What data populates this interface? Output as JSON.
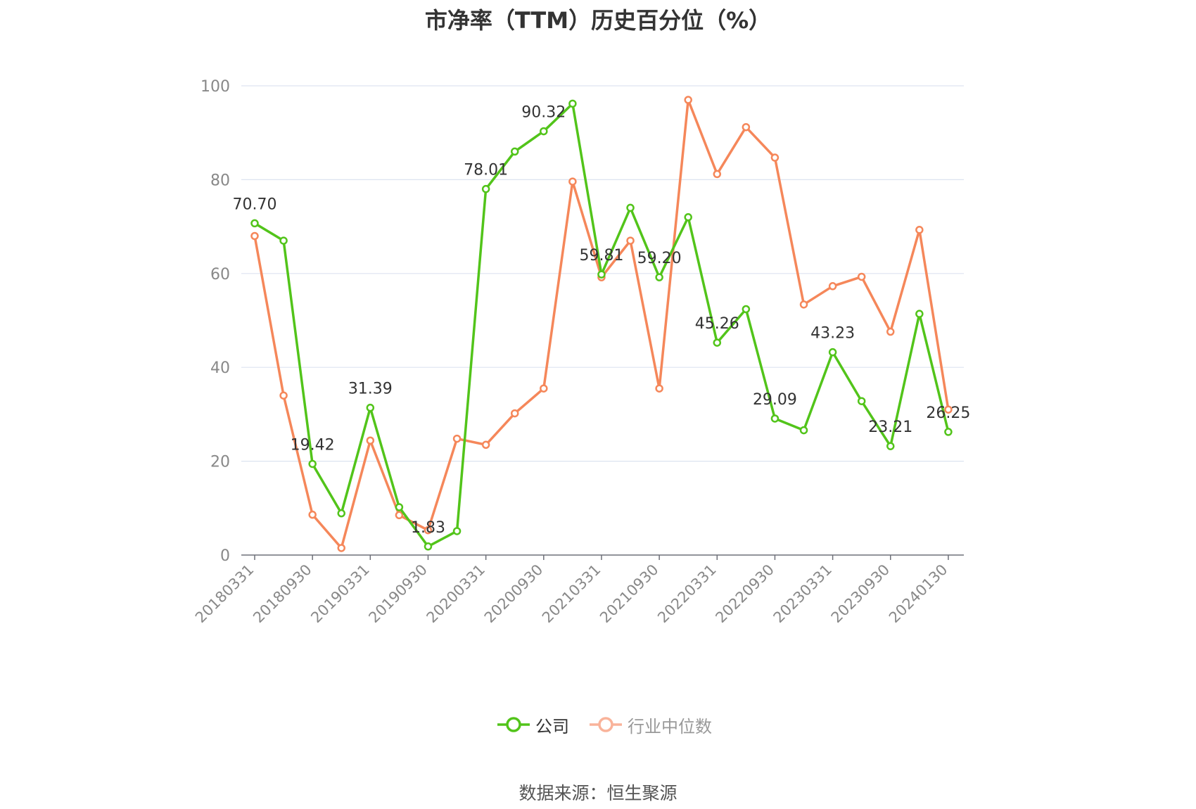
{
  "title": "市净率（TTM）历史百分位（%）",
  "source": "数据来源：恒生聚源",
  "colors": {
    "company": "#52c41a",
    "industry": "#f5875a",
    "grid": "#dde3f0",
    "axis": "#6e7079",
    "text": "#333333"
  },
  "chart_data": {
    "type": "line",
    "ylim": [
      0,
      100
    ],
    "yticks": [
      0,
      20,
      40,
      60,
      80,
      100
    ],
    "x": [
      "20180331",
      "20180630",
      "20180930",
      "20181231",
      "20190331",
      "20190630",
      "20190930",
      "20191231",
      "20200331",
      "20200630",
      "20200930",
      "20201231",
      "20210331",
      "20210630",
      "20210930",
      "20211231",
      "20220331",
      "20220630",
      "20220930",
      "20221231",
      "20230331",
      "20230630",
      "20230930",
      "20231231",
      "20240130"
    ],
    "xtick_labels": [
      "20180331",
      "20180930",
      "20190331",
      "20190930",
      "20200331",
      "20200930",
      "20210331",
      "20210930",
      "20220331",
      "20220930",
      "20230331",
      "20230930",
      "20240130"
    ],
    "series": [
      {
        "name": "公司",
        "values": [
          70.7,
          67.0,
          19.42,
          8.9,
          31.39,
          10.2,
          1.83,
          5.1,
          78.01,
          86.0,
          90.32,
          96.2,
          59.81,
          74.0,
          59.2,
          72.0,
          45.26,
          52.4,
          29.09,
          26.6,
          43.23,
          32.8,
          23.21,
          51.4,
          26.25
        ],
        "labels": [
          "70.70",
          "",
          "19.42",
          "",
          "31.39",
          "",
          "1.83",
          "",
          "78.01",
          "",
          "90.32",
          "",
          "59.81",
          "",
          "59.20",
          "",
          "45.26",
          "",
          "29.09",
          "",
          "43.23",
          "",
          "23.21",
          "",
          "26.25"
        ]
      },
      {
        "name": "行业中位数",
        "values": [
          68.0,
          34.0,
          8.6,
          1.5,
          24.4,
          8.5,
          5.3,
          24.8,
          23.5,
          30.2,
          35.5,
          79.6,
          59.2,
          67.0,
          35.5,
          97.0,
          81.2,
          91.2,
          84.7,
          53.4,
          57.3,
          59.3,
          47.6,
          69.3,
          31.0
        ]
      }
    ],
    "legend": [
      "公司",
      "行业中位数"
    ],
    "legend_position": "bottom-center",
    "grid": true
  }
}
